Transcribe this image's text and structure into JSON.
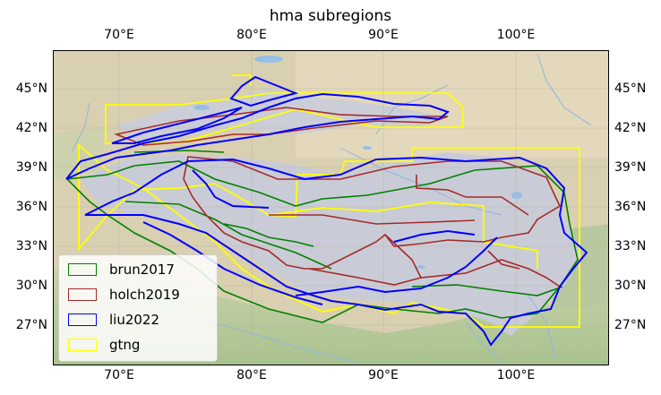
{
  "map": {
    "title": "hma subregions",
    "lon_ticks": [
      "70°E",
      "80°E",
      "90°E",
      "100°E"
    ],
    "lat_ticks": [
      "45°N",
      "42°N",
      "39°N",
      "36°N",
      "33°N",
      "30°N",
      "27°N"
    ],
    "legend": [
      {
        "label": "brun2017",
        "color": "#008000"
      },
      {
        "label": "holch2019",
        "color": "#a52a2a"
      },
      {
        "label": "liu2022",
        "color": "#0000ff"
      },
      {
        "label": "gtng",
        "color": "#ffff00"
      }
    ],
    "basemap_colors": {
      "land": "#dcd2b4",
      "desert": "#e6dcbe",
      "ice": "#c8ccd8",
      "vegetation": "#b4c8a0",
      "water": "#96bee6"
    }
  }
}
